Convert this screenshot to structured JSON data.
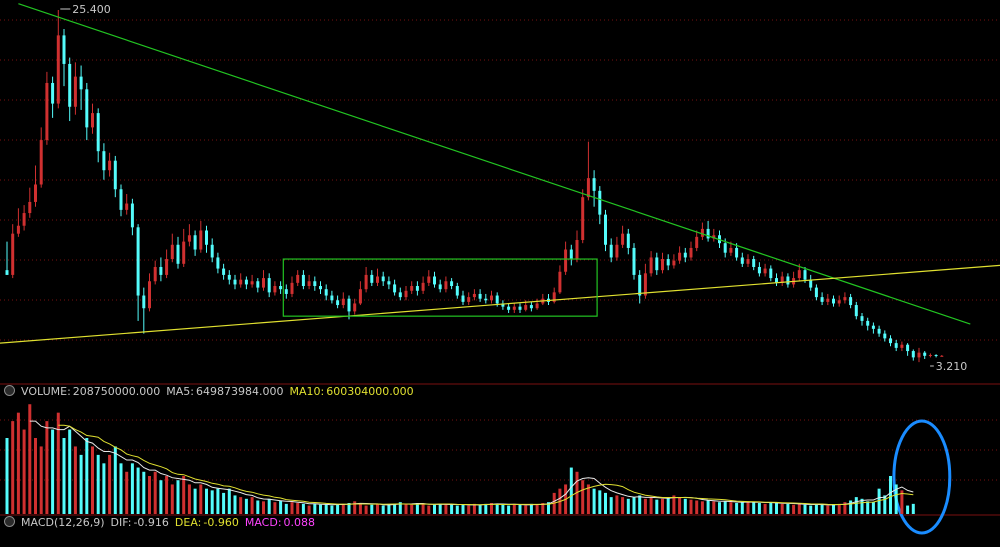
{
  "colors": {
    "up": "#d03030",
    "down": "#54fcfc",
    "grid": "#7a1010",
    "trend_green": "#22c422",
    "trend_yellow": "#e0e030",
    "box": "#22c422",
    "ellipse": "#1a8cff",
    "ma5": "#e8e8e8",
    "ma10": "#e0e030",
    "dif": "#e8e8e8",
    "dea": "#e0e030",
    "macd": "#ff44ff"
  },
  "volume_panel": {
    "label": "VOLUME:",
    "value": "208750000.000",
    "ma5_label": "MA5:",
    "ma5_value": "649873984.000",
    "ma10_label": "MA10:",
    "ma10_value": "600304000.000"
  },
  "macd_panel": {
    "label": "MACD(12,26,9)",
    "dif_label": "DIF:",
    "dif_value": "-0.916",
    "dea_label": "DEA:",
    "dea_value": "-0.960",
    "macd_label": "MACD:",
    "macd_value": "0.088"
  },
  "chart_data": {
    "type": "candlestick",
    "price_high_label": "25.400",
    "price_low_label": "3.210",
    "price_high": 25.4,
    "price_low": 3.21,
    "candles": [
      [
        9,
        8.7,
        10.8,
        8.7
      ],
      [
        8.7,
        11.3,
        11.9,
        8.5
      ],
      [
        11.3,
        11.8,
        12.9,
        11.1
      ],
      [
        11.8,
        12.6,
        13.1,
        11.5
      ],
      [
        12.6,
        13.3,
        14.2,
        12.3
      ],
      [
        13.3,
        14.4,
        15.6,
        13.0
      ],
      [
        14.4,
        17.2,
        18.0,
        14.2
      ],
      [
        17.2,
        20.8,
        21.5,
        16.9
      ],
      [
        20.8,
        19.5,
        21.2,
        18.6
      ],
      [
        19.5,
        23.8,
        25.4,
        19.2
      ],
      [
        23.8,
        22.0,
        24.2,
        20.6
      ],
      [
        22.0,
        19.3,
        22.4,
        18.4
      ],
      [
        19.3,
        21.2,
        22.1,
        18.8
      ],
      [
        21.2,
        20.4,
        21.9,
        19.1
      ],
      [
        20.4,
        18.0,
        20.8,
        17.2
      ],
      [
        18.0,
        18.9,
        19.5,
        17.6
      ],
      [
        18.9,
        16.5,
        19.2,
        15.8
      ],
      [
        16.5,
        15.3,
        17.0,
        14.7
      ],
      [
        15.3,
        15.9,
        16.4,
        14.9
      ],
      [
        15.9,
        14.1,
        16.2,
        13.6
      ],
      [
        14.1,
        12.8,
        14.4,
        12.4
      ],
      [
        12.8,
        13.2,
        13.8,
        12.5
      ],
      [
        13.2,
        11.7,
        13.5,
        11.2
      ],
      [
        11.7,
        7.4,
        11.9,
        5.8
      ],
      [
        7.4,
        6.6,
        7.9,
        5.0
      ],
      [
        6.6,
        8.3,
        8.8,
        6.4
      ],
      [
        8.3,
        9.2,
        9.6,
        8.1
      ],
      [
        9.2,
        8.7,
        9.8,
        8.3
      ],
      [
        8.7,
        9.7,
        10.3,
        8.5
      ],
      [
        9.7,
        10.6,
        11.3,
        9.5
      ],
      [
        10.6,
        9.4,
        11.1,
        9.1
      ],
      [
        9.4,
        10.8,
        11.6,
        9.2
      ],
      [
        10.8,
        11.2,
        11.9,
        10.5
      ],
      [
        11.2,
        10.3,
        11.5,
        9.9
      ],
      [
        10.3,
        11.5,
        12.1,
        10.1
      ],
      [
        11.5,
        10.6,
        11.8,
        10.1
      ],
      [
        10.6,
        9.8,
        11.0,
        9.5
      ],
      [
        9.8,
        9.1,
        10.1,
        8.8
      ],
      [
        9.1,
        8.7,
        9.4,
        8.4
      ],
      [
        8.7,
        8.4,
        9.0,
        8.1
      ],
      [
        8.4,
        8.1,
        8.7,
        7.8
      ],
      [
        8.1,
        8.4,
        8.8,
        7.9
      ],
      [
        8.4,
        8.1,
        8.6,
        7.8
      ],
      [
        8.1,
        8.3,
        8.7,
        7.9
      ],
      [
        8.3,
        7.9,
        8.5,
        7.6
      ],
      [
        7.9,
        8.5,
        9.0,
        7.7
      ],
      [
        8.5,
        7.6,
        8.8,
        7.3
      ],
      [
        7.6,
        8.0,
        8.3,
        7.4
      ],
      [
        8.0,
        7.8,
        8.3,
        7.5
      ],
      [
        7.8,
        7.5,
        8.1,
        7.2
      ],
      [
        7.5,
        8.2,
        8.6,
        7.3
      ],
      [
        8.2,
        8.7,
        9.0,
        8.0
      ],
      [
        8.7,
        8.0,
        9.0,
        7.8
      ],
      [
        8.0,
        8.3,
        8.7,
        7.8
      ],
      [
        8.3,
        8.0,
        8.6,
        7.7
      ],
      [
        8.0,
        7.8,
        8.3,
        7.5
      ],
      [
        7.8,
        7.4,
        8.1,
        7.1
      ],
      [
        7.4,
        7.1,
        7.7,
        6.9
      ],
      [
        7.1,
        6.8,
        7.4,
        6.6
      ],
      [
        6.8,
        7.2,
        7.6,
        6.6
      ],
      [
        7.2,
        6.4,
        7.4,
        5.9
      ],
      [
        6.4,
        6.9,
        7.2,
        6.2
      ],
      [
        6.9,
        7.8,
        8.3,
        6.8
      ],
      [
        7.8,
        8.7,
        9.2,
        7.6
      ],
      [
        8.7,
        8.2,
        9.0,
        8.0
      ],
      [
        8.2,
        8.6,
        9.1,
        8.0
      ],
      [
        8.6,
        8.3,
        8.9,
        8.0
      ],
      [
        8.3,
        8.1,
        8.6,
        7.8
      ],
      [
        8.1,
        7.6,
        8.4,
        7.4
      ],
      [
        7.6,
        7.3,
        7.9,
        7.1
      ],
      [
        7.3,
        7.7,
        8.0,
        7.1
      ],
      [
        7.7,
        8.0,
        8.3,
        7.5
      ],
      [
        8.0,
        7.7,
        8.3,
        7.4
      ],
      [
        7.7,
        8.2,
        8.6,
        7.5
      ],
      [
        8.2,
        8.6,
        9.0,
        8.0
      ],
      [
        8.6,
        8.1,
        8.9,
        7.9
      ],
      [
        8.1,
        7.8,
        8.4,
        7.6
      ],
      [
        7.8,
        8.3,
        8.6,
        7.6
      ],
      [
        8.3,
        8.0,
        8.5,
        7.8
      ],
      [
        8.0,
        7.4,
        8.2,
        7.2
      ],
      [
        7.4,
        7.0,
        7.7,
        6.8
      ],
      [
        7.0,
        7.3,
        7.6,
        6.8
      ],
      [
        7.3,
        7.5,
        7.8,
        7.1
      ],
      [
        7.5,
        7.2,
        7.8,
        7.0
      ],
      [
        7.2,
        7.1,
        7.5,
        6.9
      ],
      [
        7.1,
        7.4,
        7.7,
        6.9
      ],
      [
        7.4,
        6.9,
        7.6,
        6.7
      ],
      [
        6.9,
        6.7,
        7.1,
        6.5
      ],
      [
        6.7,
        6.5,
        6.9,
        6.3
      ],
      [
        6.5,
        6.7,
        6.9,
        6.3
      ],
      [
        6.7,
        6.5,
        6.9,
        6.3
      ],
      [
        6.5,
        6.8,
        7.1,
        6.4
      ],
      [
        6.8,
        6.6,
        7.0,
        6.4
      ],
      [
        6.6,
        6.9,
        7.2,
        6.5
      ],
      [
        6.9,
        7.2,
        7.5,
        6.8
      ],
      [
        7.2,
        7.0,
        7.5,
        6.8
      ],
      [
        7.0,
        7.6,
        7.9,
        6.9
      ],
      [
        7.6,
        8.9,
        9.3,
        7.5
      ],
      [
        8.9,
        10.3,
        10.8,
        8.7
      ],
      [
        10.3,
        9.7,
        10.6,
        9.3
      ],
      [
        9.7,
        10.9,
        11.5,
        9.5
      ],
      [
        10.9,
        13.6,
        14.1,
        10.7
      ],
      [
        13.6,
        14.8,
        17.1,
        13.4
      ],
      [
        14.8,
        14.0,
        15.3,
        13.0
      ],
      [
        14.0,
        12.5,
        14.3,
        11.9
      ],
      [
        12.5,
        10.6,
        12.8,
        10.2
      ],
      [
        10.6,
        9.8,
        11.0,
        9.5
      ],
      [
        9.8,
        10.6,
        11.1,
        9.6
      ],
      [
        10.6,
        11.3,
        11.8,
        10.4
      ],
      [
        11.3,
        10.4,
        11.6,
        10.0
      ],
      [
        10.4,
        8.7,
        10.7,
        8.4
      ],
      [
        8.7,
        7.4,
        9.0,
        6.9
      ],
      [
        7.4,
        8.8,
        9.4,
        7.2
      ],
      [
        8.8,
        9.8,
        10.2,
        8.6
      ],
      [
        9.8,
        9.0,
        10.1,
        8.7
      ],
      [
        9.0,
        9.7,
        10.1,
        8.8
      ],
      [
        9.7,
        9.3,
        10.0,
        9.0
      ],
      [
        9.3,
        9.6,
        10.0,
        9.1
      ],
      [
        9.6,
        10.1,
        10.5,
        9.4
      ],
      [
        10.1,
        9.8,
        10.4,
        9.5
      ],
      [
        9.8,
        10.4,
        10.8,
        9.6
      ],
      [
        10.4,
        11.1,
        11.5,
        10.2
      ],
      [
        11.1,
        11.6,
        12.0,
        10.9
      ],
      [
        11.6,
        11.0,
        12.1,
        10.8
      ],
      [
        11.0,
        11.2,
        11.6,
        10.8
      ],
      [
        11.2,
        10.7,
        11.5,
        10.4
      ],
      [
        10.7,
        10.1,
        11.0,
        9.8
      ],
      [
        10.1,
        10.4,
        10.8,
        9.9
      ],
      [
        10.4,
        9.8,
        10.7,
        9.6
      ],
      [
        9.8,
        9.4,
        10.1,
        9.2
      ],
      [
        9.4,
        9.7,
        10.0,
        9.2
      ],
      [
        9.7,
        9.2,
        9.9,
        9.0
      ],
      [
        9.2,
        8.8,
        9.5,
        8.6
      ],
      [
        8.8,
        9.1,
        9.4,
        8.6
      ],
      [
        9.1,
        8.5,
        9.3,
        8.3
      ],
      [
        8.5,
        8.2,
        8.8,
        8.0
      ],
      [
        8.2,
        8.6,
        8.9,
        8.0
      ],
      [
        8.6,
        8.1,
        8.8,
        7.9
      ],
      [
        8.1,
        8.5,
        8.9,
        7.9
      ],
      [
        8.5,
        9.0,
        9.4,
        8.3
      ],
      [
        9.0,
        8.4,
        9.2,
        8.2
      ],
      [
        8.4,
        7.9,
        8.7,
        7.7
      ],
      [
        7.9,
        7.3,
        8.1,
        7.1
      ],
      [
        7.3,
        7.0,
        7.6,
        6.8
      ],
      [
        7.0,
        7.2,
        7.5,
        6.8
      ],
      [
        7.2,
        6.9,
        7.4,
        6.7
      ],
      [
        6.9,
        7.1,
        7.4,
        6.7
      ],
      [
        7.1,
        7.3,
        7.6,
        6.9
      ],
      [
        7.3,
        6.8,
        7.5,
        6.6
      ],
      [
        6.8,
        6.1,
        7.0,
        5.9
      ],
      [
        6.1,
        5.8,
        6.3,
        5.5
      ],
      [
        5.8,
        5.5,
        6.0,
        5.2
      ],
      [
        5.5,
        5.3,
        5.7,
        5.0
      ],
      [
        5.3,
        5.0,
        5.5,
        4.8
      ],
      [
        5.0,
        4.7,
        5.2,
        4.5
      ],
      [
        4.7,
        4.4,
        4.9,
        4.2
      ],
      [
        4.4,
        4.1,
        4.6,
        3.9
      ],
      [
        4.1,
        4.3,
        4.5,
        3.9
      ],
      [
        4.3,
        3.9,
        4.4,
        3.6
      ],
      [
        3.9,
        3.5,
        4.0,
        3.3
      ],
      [
        3.5,
        3.8,
        4.1,
        3.2
      ],
      [
        3.8,
        3.6,
        3.9,
        3.4
      ],
      [
        3.6,
        3.65,
        3.75,
        3.5
      ],
      [
        3.65,
        3.6,
        3.7,
        3.5
      ],
      [
        3.6,
        3.6,
        3.65,
        3.55
      ]
    ],
    "volumes": [
      0.9,
      1.1,
      1.2,
      1.0,
      1.3,
      0.9,
      0.8,
      1.1,
      1.0,
      1.2,
      0.9,
      1.0,
      0.8,
      0.7,
      0.9,
      0.8,
      0.7,
      0.6,
      0.7,
      0.8,
      0.6,
      0.5,
      0.6,
      0.55,
      0.5,
      0.45,
      0.5,
      0.4,
      0.45,
      0.35,
      0.4,
      0.45,
      0.35,
      0.3,
      0.35,
      0.3,
      0.28,
      0.3,
      0.25,
      0.3,
      0.22,
      0.2,
      0.18,
      0.2,
      0.16,
      0.15,
      0.18,
      0.14,
      0.16,
      0.12,
      0.14,
      0.13,
      0.12,
      0.1,
      0.12,
      0.11,
      0.12,
      0.1,
      0.11,
      0.12,
      0.13,
      0.15,
      0.12,
      0.1,
      0.11,
      0.12,
      0.1,
      0.11,
      0.12,
      0.14,
      0.12,
      0.11,
      0.13,
      0.12,
      0.1,
      0.11,
      0.12,
      0.12,
      0.11,
      0.1,
      0.11,
      0.1,
      0.12,
      0.11,
      0.12,
      0.13,
      0.12,
      0.11,
      0.1,
      0.12,
      0.11,
      0.1,
      0.12,
      0.11,
      0.13,
      0.14,
      0.25,
      0.3,
      0.35,
      0.55,
      0.5,
      0.4,
      0.35,
      0.3,
      0.28,
      0.25,
      0.2,
      0.22,
      0.2,
      0.18,
      0.2,
      0.22,
      0.18,
      0.2,
      0.17,
      0.18,
      0.2,
      0.22,
      0.2,
      0.18,
      0.17,
      0.16,
      0.15,
      0.16,
      0.15,
      0.14,
      0.15,
      0.14,
      0.13,
      0.14,
      0.15,
      0.14,
      0.13,
      0.12,
      0.14,
      0.13,
      0.12,
      0.12,
      0.11,
      0.12,
      0.11,
      0.1,
      0.12,
      0.11,
      0.1,
      0.11,
      0.12,
      0.14,
      0.16,
      0.2,
      0.18,
      0.15,
      0.14,
      0.3,
      0.22,
      0.45,
      0.35,
      0.28,
      0.1,
      0.12
    ],
    "annotations": {
      "green_trendline": {
        "from": [
          2,
          25.8
        ],
        "to": [
          169,
          5.6
        ]
      },
      "yellow_trendline": {
        "from": [
          0,
          4.4
        ],
        "to": [
          169,
          9.3
        ]
      },
      "green_box": {
        "i0": 49,
        "i1": 103,
        "top": 9.7,
        "bottom": 6.1
      },
      "blue_ellipse": {
        "i0": 157,
        "i1": 164
      }
    }
  }
}
